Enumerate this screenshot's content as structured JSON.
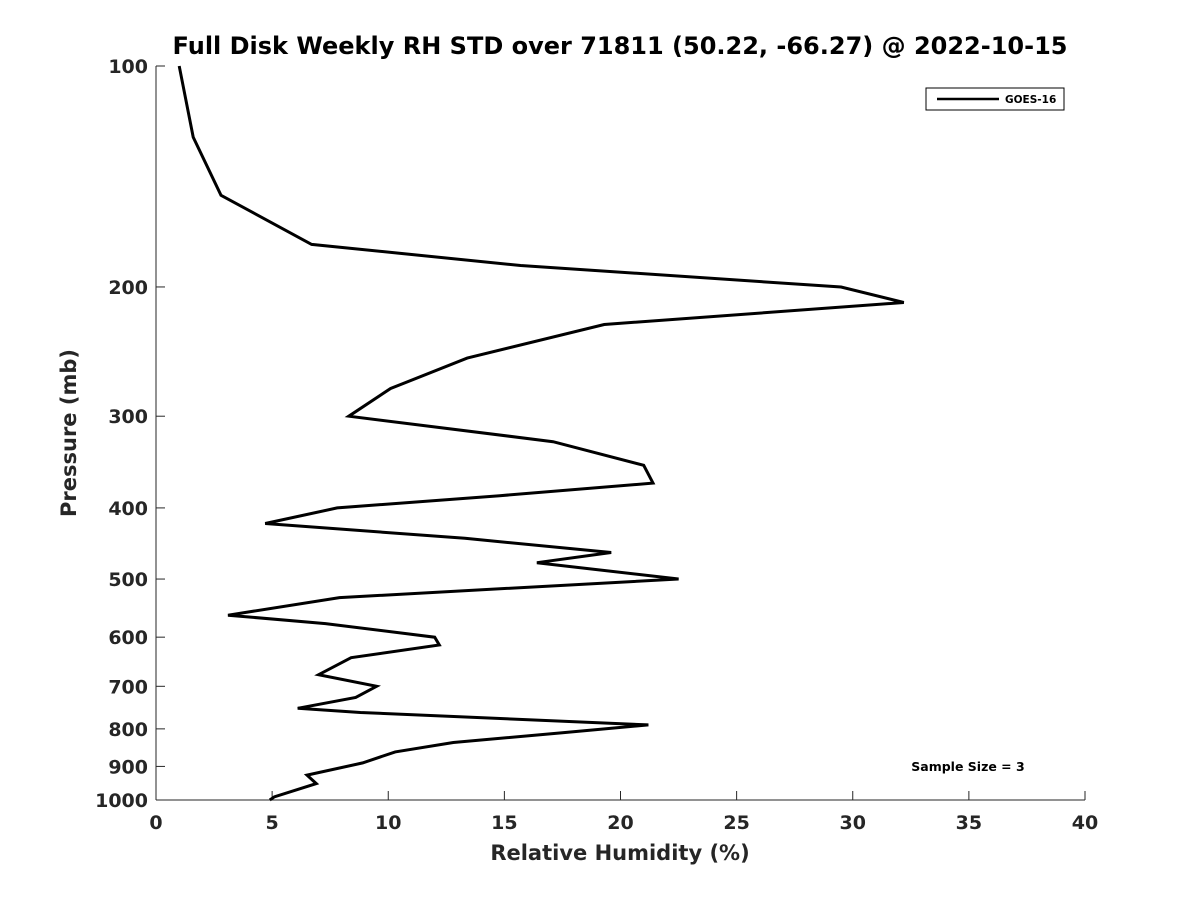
{
  "chart_data": {
    "type": "line",
    "title": "Full Disk Weekly RH STD over 71811 (50.22, -66.27) @ 2022-10-15",
    "xlabel": "Relative Humidity (%)",
    "ylabel": "Pressure (mb)",
    "xlim": [
      0,
      40
    ],
    "ylim": [
      1000,
      100
    ],
    "yscale": "log",
    "xticks": [
      0,
      5,
      10,
      15,
      20,
      25,
      30,
      35,
      40
    ],
    "xtick_labels": [
      "0",
      "5",
      "10",
      "15",
      "20",
      "25",
      "30",
      "35",
      "40"
    ],
    "yticks": [
      100,
      200,
      300,
      400,
      500,
      600,
      700,
      800,
      900,
      1000
    ],
    "ytick_labels": [
      "100",
      "200",
      "300",
      "400",
      "500",
      "600",
      "700",
      "800",
      "900",
      "1000"
    ],
    "grid": false,
    "legend_position": "top-right",
    "series": [
      {
        "name": "GOES-16",
        "color": "#000000",
        "points": [
          [
            1.0,
            100
          ],
          [
            1.6,
            125
          ],
          [
            2.8,
            150
          ],
          [
            6.7,
            175
          ],
          [
            15.7,
            187
          ],
          [
            29.5,
            200
          ],
          [
            32.2,
            210
          ],
          [
            19.3,
            225
          ],
          [
            13.4,
            250
          ],
          [
            10.1,
            275
          ],
          [
            8.3,
            300
          ],
          [
            17.1,
            325
          ],
          [
            21.0,
            350
          ],
          [
            21.4,
            370
          ],
          [
            14.8,
            385
          ],
          [
            7.8,
            400
          ],
          [
            4.7,
            420
          ],
          [
            13.3,
            440
          ],
          [
            19.6,
            460
          ],
          [
            16.4,
            475
          ],
          [
            22.5,
            500
          ],
          [
            7.9,
            530
          ],
          [
            3.1,
            560
          ],
          [
            7.3,
            575
          ],
          [
            12.0,
            600
          ],
          [
            12.2,
            615
          ],
          [
            8.4,
            640
          ],
          [
            7.0,
            675
          ],
          [
            9.5,
            700
          ],
          [
            8.6,
            725
          ],
          [
            6.1,
            750
          ],
          [
            8.8,
            760
          ],
          [
            21.2,
            790
          ],
          [
            17.5,
            810
          ],
          [
            12.8,
            835
          ],
          [
            10.3,
            860
          ],
          [
            8.9,
            890
          ],
          [
            6.5,
            925
          ],
          [
            6.9,
            950
          ],
          [
            5.1,
            990
          ],
          [
            4.9,
            1000
          ]
        ]
      }
    ],
    "annotation": "Sample Size = 3"
  }
}
